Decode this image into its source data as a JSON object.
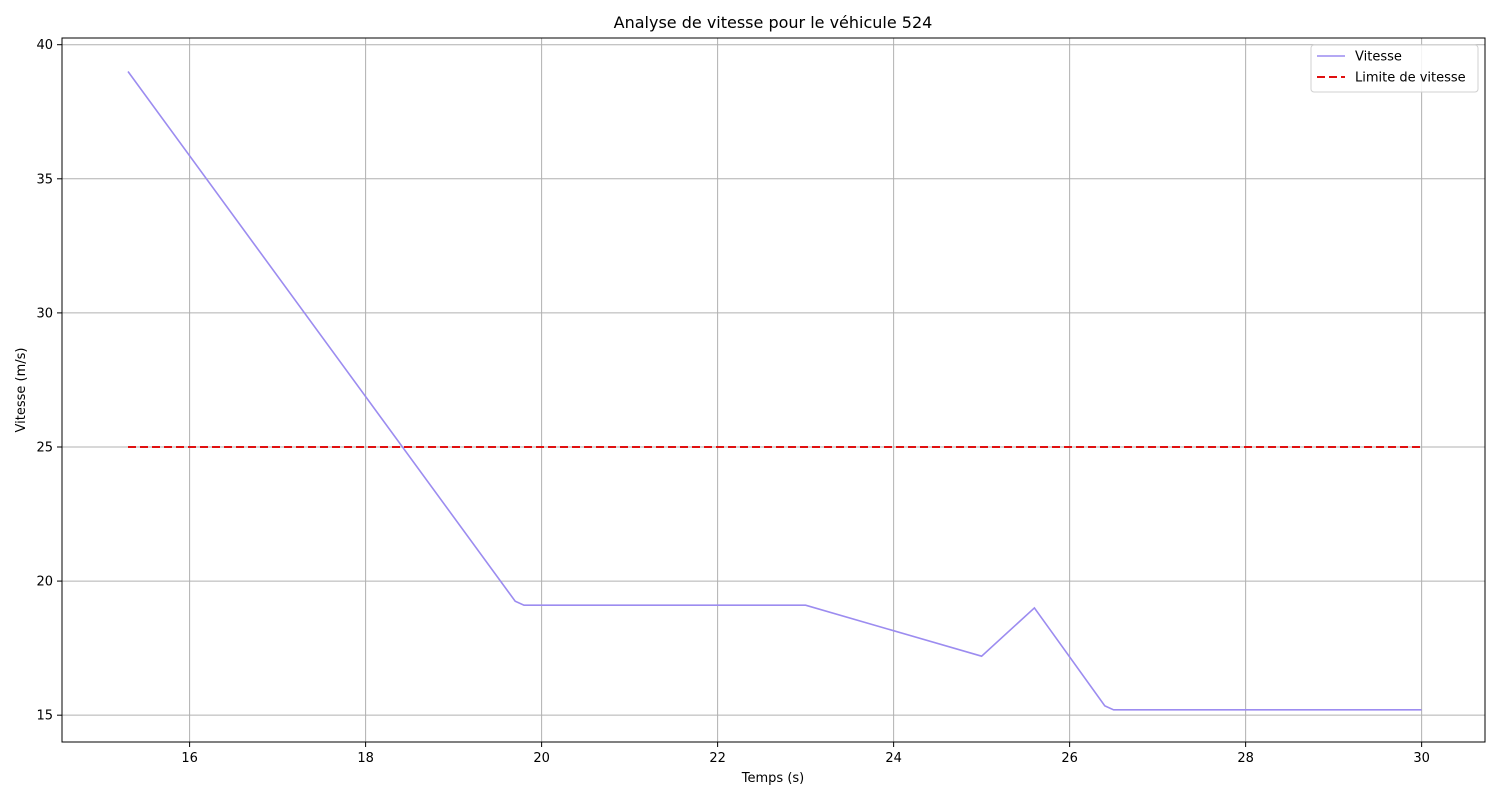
{
  "chart_data": {
    "type": "line",
    "title": "Analyse de vitesse pour le véhicule 524",
    "xlabel": "Temps (s)",
    "ylabel": "Vitesse (m/s)",
    "xlim": [
      14.55,
      30.72
    ],
    "ylim": [
      14.0,
      40.25
    ],
    "xticks": [
      16,
      18,
      20,
      22,
      24,
      26,
      28,
      30
    ],
    "yticks": [
      15,
      20,
      25,
      30,
      35,
      40
    ],
    "grid": true,
    "legend_position": "top-right",
    "series": [
      {
        "name": "Vitesse",
        "color": "#9c8cf0",
        "style": "solid",
        "x": [
          15.3,
          19.7,
          19.8,
          23.0,
          25.0,
          25.6,
          26.4,
          26.5,
          30.0
        ],
        "y": [
          39.0,
          19.25,
          19.1,
          19.1,
          17.2,
          19.0,
          15.35,
          15.2,
          15.2
        ]
      },
      {
        "name": "Limite de vitesse",
        "color": "#e01010",
        "style": "dashed",
        "x": [
          15.3,
          30.0
        ],
        "y": [
          25.0,
          25.0
        ]
      }
    ]
  }
}
